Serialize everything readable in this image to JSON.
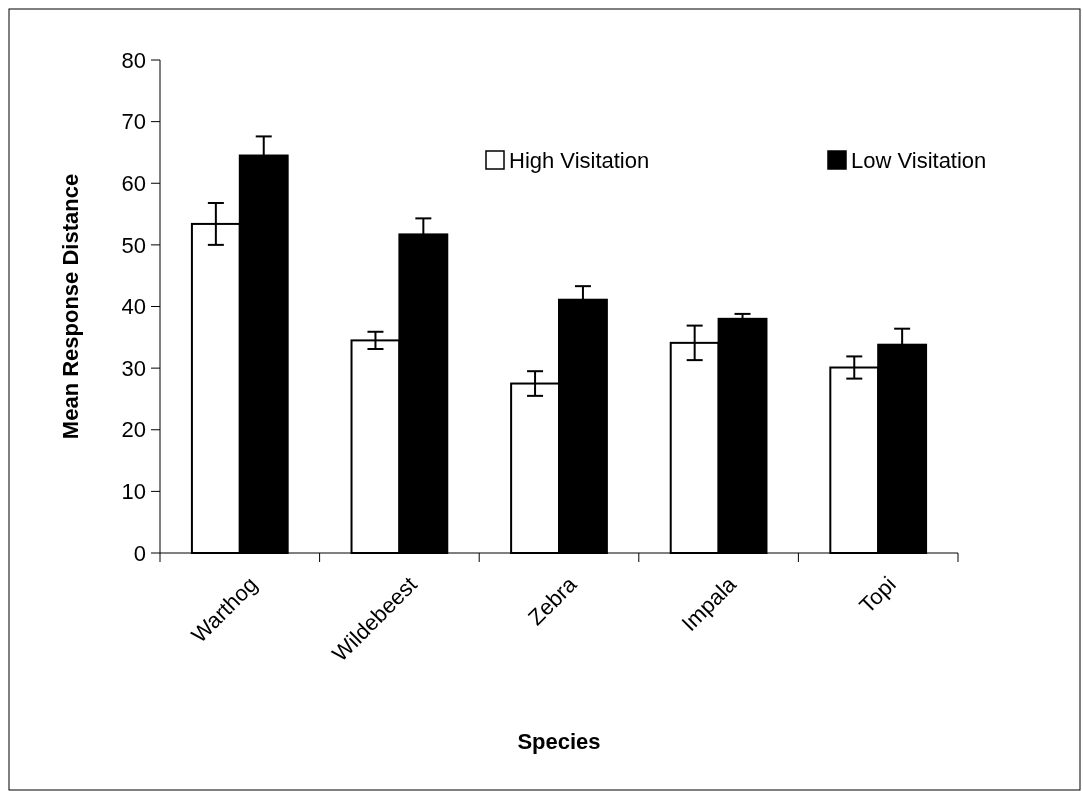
{
  "chart_data": {
    "type": "bar",
    "xlabel": "Species",
    "ylabel": "Mean Response Distance",
    "categories": [
      "Warthog",
      "Wildebeest",
      "Zebra",
      "Impala",
      "Topi"
    ],
    "series": [
      {
        "name": "High Visitation",
        "color": "#ffffff",
        "values": [
          53.4,
          34.5,
          27.5,
          34.1,
          30.1
        ],
        "errors": [
          3.4,
          1.4,
          2.0,
          2.8,
          1.8
        ]
      },
      {
        "name": "Low Visitation",
        "color": "#000000",
        "values": [
          64.5,
          51.7,
          41.1,
          38.0,
          33.8
        ],
        "errors": [
          3.1,
          2.6,
          2.2,
          0.8,
          2.6
        ]
      }
    ],
    "ylim": [
      0,
      80
    ],
    "yticks": [
      0,
      10,
      20,
      30,
      40,
      50,
      60,
      70,
      80
    ],
    "grid": false,
    "legend": "top right"
  }
}
